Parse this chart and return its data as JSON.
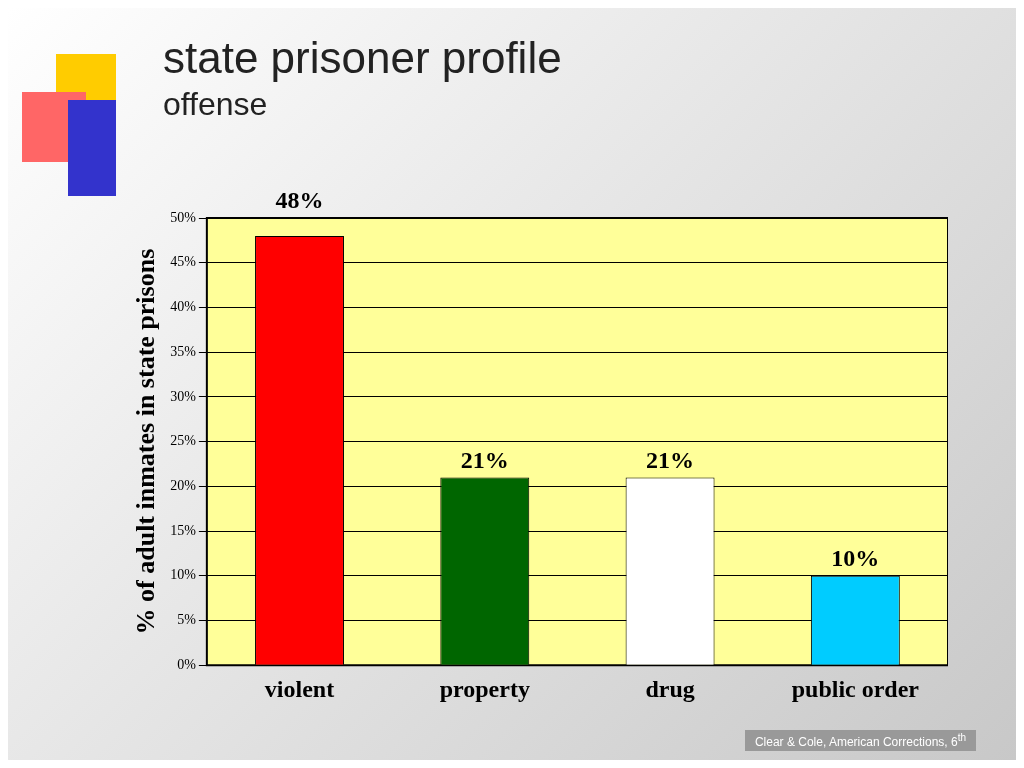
{
  "chart_data": {
    "type": "bar",
    "title": "state prisoner profile",
    "subtitle": "offense",
    "ylabel": "% of adult inmates in state prisons",
    "categories": [
      "violent",
      "property",
      "drug",
      "public order"
    ],
    "values": [
      48,
      21,
      21,
      10
    ],
    "colors": [
      "#ff0000",
      "#006600",
      "#ffffff",
      "#00ccff"
    ],
    "value_labels": [
      "48%",
      "21%",
      "21%",
      "10%"
    ],
    "ylim": [
      0,
      50
    ],
    "yticks": [
      {
        "value": 0,
        "label": "0%"
      },
      {
        "value": 5,
        "label": "5%"
      },
      {
        "value": 10,
        "label": "10%"
      },
      {
        "value": 15,
        "label": "15%"
      },
      {
        "value": 20,
        "label": "20%"
      },
      {
        "value": 25,
        "label": "25%"
      },
      {
        "value": 30,
        "label": "30%"
      },
      {
        "value": 35,
        "label": "35%"
      },
      {
        "value": 40,
        "label": "40%"
      },
      {
        "value": 45,
        "label": "45%"
      },
      {
        "value": 50,
        "label": "50%"
      }
    ],
    "grid": "y",
    "annotations": [
      "Clear & Cole, American Corrections, 6$^{th}$"
    ]
  }
}
